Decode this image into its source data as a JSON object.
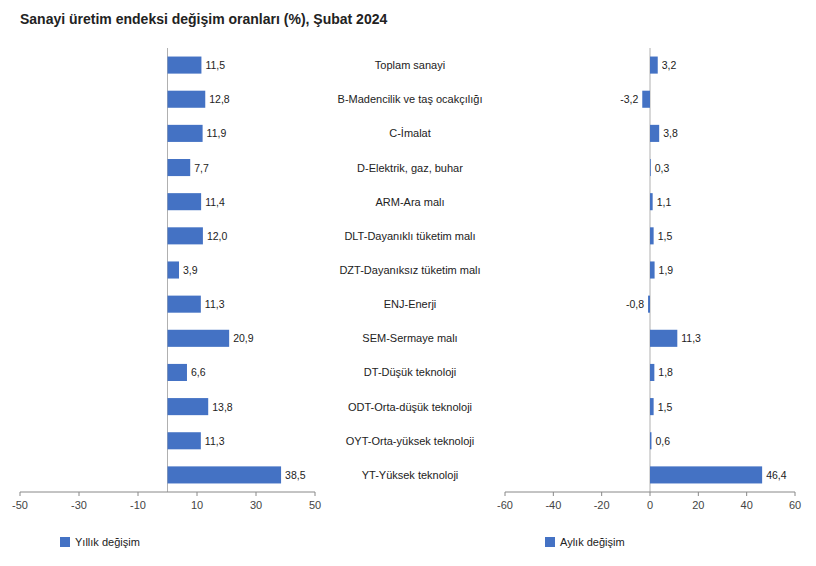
{
  "chart_data": [
    {
      "type": "bar",
      "orientation": "horizontal",
      "title": "Sanayi üretim endeksi değişim oranları (%), Şubat 2024",
      "categories": [
        "Toplam sanayi",
        "B-Madencilik ve taş ocakçılığı",
        "C-İmalat",
        "D-Elektrik, gaz, buhar",
        "ARM-Ara malı",
        "DLT-Dayanıklı tüketim malı",
        "DZT-Dayanıksız tüketim malı",
        "ENJ-Enerji",
        "SEM-Sermaye malı",
        "DT-Düşük teknoloji",
        "ODT-Orta-düşük teknoloji",
        "OYT-Orta-yüksek teknoloji",
        "YT-Yüksek teknoloji"
      ],
      "series": [
        {
          "name": "Yıllık değişim",
          "color": "#4472C4",
          "values": [
            11.5,
            12.8,
            11.9,
            7.7,
            11.4,
            12.0,
            3.9,
            11.3,
            20.9,
            6.6,
            13.8,
            11.3,
            38.5
          ],
          "value_labels": [
            "11,5",
            "12,8",
            "11,9",
            "7,7",
            "11,4",
            "12,0",
            "3,9",
            "11,3",
            "20,9",
            "6,6",
            "13,8",
            "11,3",
            "38,5"
          ]
        }
      ],
      "xlim": [
        -50,
        50
      ],
      "xticks": [
        -50,
        -30,
        -10,
        10,
        30,
        50
      ],
      "data_labels": true,
      "legend": "bottom",
      "grid": false
    },
    {
      "type": "bar",
      "orientation": "horizontal",
      "series": [
        {
          "name": "Aylık değişim",
          "color": "#4472C4",
          "values": [
            3.2,
            -3.2,
            3.8,
            0.3,
            1.1,
            1.5,
            1.9,
            -0.8,
            11.3,
            1.8,
            1.5,
            0.6,
            46.4
          ],
          "value_labels": [
            "3,2",
            "-3,2",
            "3,8",
            "0,3",
            "1,1",
            "1,5",
            "1,9",
            "-0,8",
            "11,3",
            "1,8",
            "1,5",
            "0,6",
            "46,4"
          ]
        }
      ],
      "xlim": [
        -60,
        60
      ],
      "xticks": [
        -60,
        -40,
        -20,
        0,
        20,
        40,
        60
      ],
      "data_labels": true,
      "legend": "bottom",
      "grid": false
    }
  ]
}
